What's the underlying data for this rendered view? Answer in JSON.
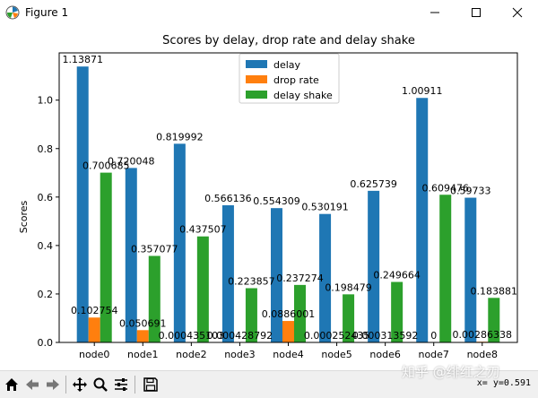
{
  "window": {
    "title": "Figure 1",
    "minimize_icon": "minimize-icon",
    "maximize_icon": "maximize-icon",
    "close_icon": "close-icon"
  },
  "toolbar": {
    "buttons": [
      "home-icon",
      "back-icon",
      "forward-icon",
      "pan-icon",
      "zoom-icon",
      "subplots-icon",
      "save-icon"
    ],
    "coords": "x= y=0.591"
  },
  "watermark": "知乎 @绯红之刃",
  "chart_data": {
    "type": "bar",
    "title": "Scores by delay, drop rate and delay shake",
    "xlabel": "",
    "ylabel": "Scores",
    "categories": [
      "node0",
      "node1",
      "node2",
      "node3",
      "node4",
      "node5",
      "node6",
      "node7",
      "node8"
    ],
    "ylim": [
      0,
      1.195
    ],
    "yticks": [
      "0.0",
      "0.2",
      "0.4",
      "0.6",
      "0.8",
      "1.0"
    ],
    "legend_position": "top-center",
    "series": [
      {
        "name": "delay",
        "color": "#1f77b4",
        "values": [
          1.13871,
          0.720048,
          0.819992,
          0.566136,
          0.554309,
          0.530191,
          0.625739,
          1.00911,
          0.59733
        ],
        "labels": [
          "1.13871",
          "0.720048",
          "0.819992",
          "0.566136",
          "0.554309",
          "0.530191",
          "0.625739",
          "1.00911",
          "0.59733"
        ]
      },
      {
        "name": "drop rate",
        "color": "#ff7f0e",
        "values": [
          0.102754,
          0.050691,
          0.000435,
          0.000429,
          0.0886001,
          0.000252,
          0.000314,
          0,
          0.002863
        ],
        "labels": [
          "0.102754",
          "0.050691",
          "0.000435103",
          "0.000428792",
          "0.0886001",
          "0.000252435",
          "0.000313592",
          "0",
          "0.00286338"
        ]
      },
      {
        "name": "delay shake",
        "color": "#2ca02c",
        "values": [
          0.700685,
          0.357077,
          0.437507,
          0.223857,
          0.237274,
          0.198479,
          0.249664,
          0.609476,
          0.183881
        ],
        "labels": [
          "0.700685",
          "0.357077",
          "0.437507",
          "0.223857",
          "0.237274",
          "0.198479",
          "0.249664",
          "0.609476",
          "0.183881"
        ]
      }
    ]
  }
}
